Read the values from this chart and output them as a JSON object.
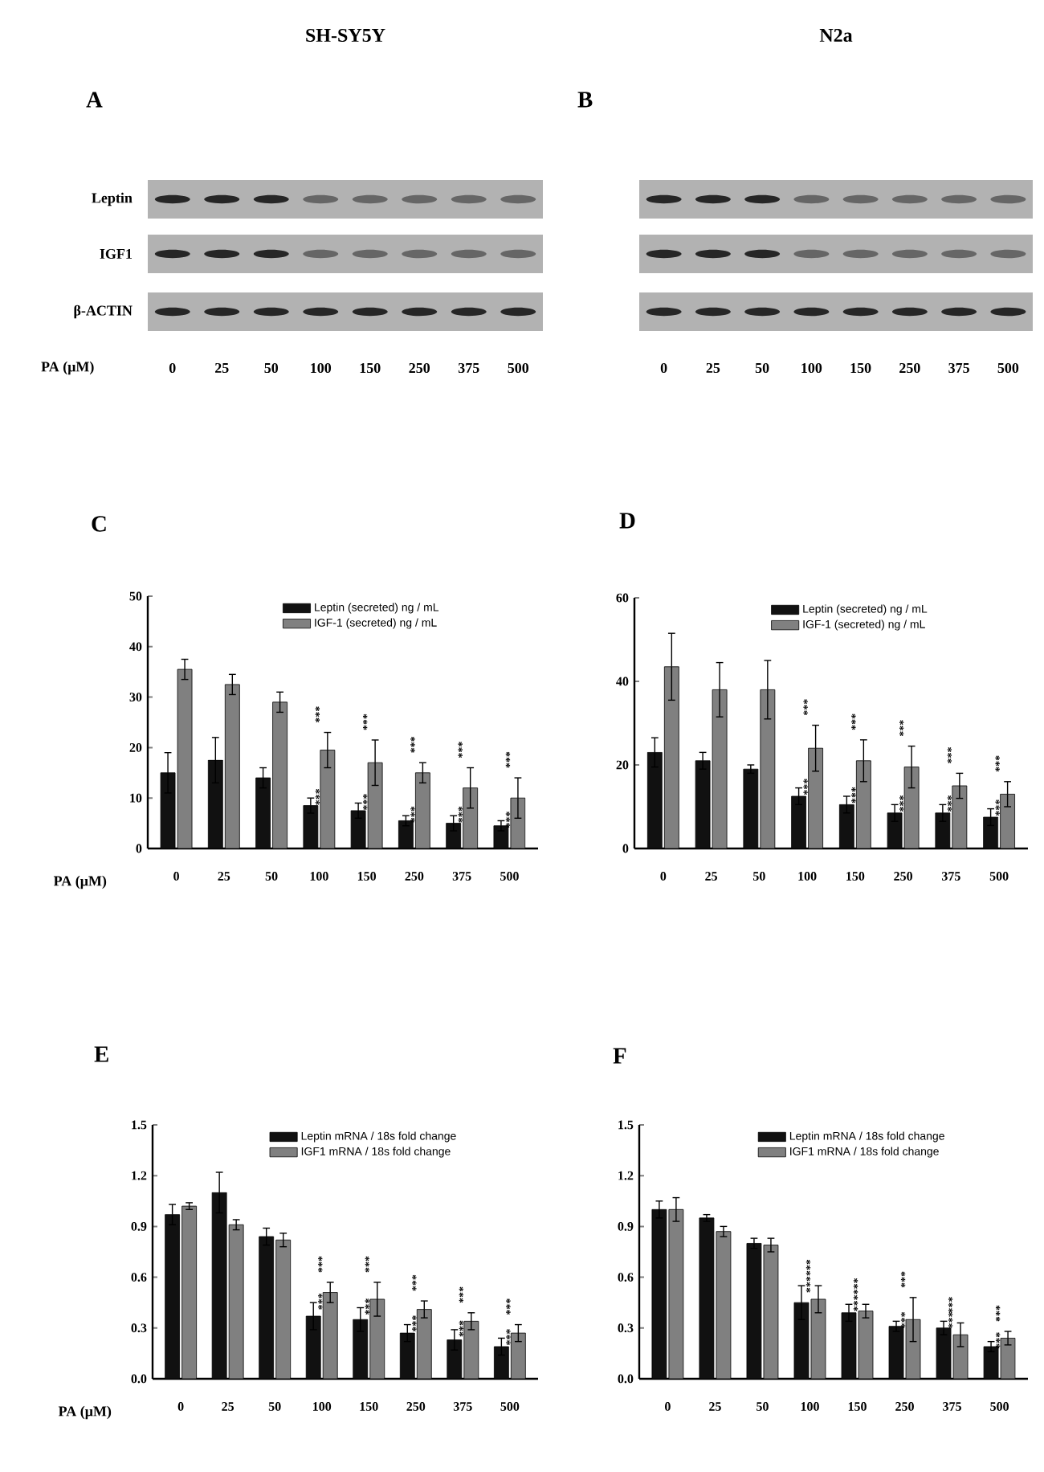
{
  "chart_data": [
    {
      "type": "other",
      "title": "A",
      "subtitle": "SH-SY5Y",
      "xlabel": "PA (μM)",
      "annotations": [
        "Leptin",
        "IGF1",
        "β-ACTIN"
      ],
      "categories": [
        "0",
        "25",
        "50",
        "100",
        "150",
        "250",
        "375",
        "500"
      ]
    },
    {
      "type": "other",
      "title": "B",
      "subtitle": "N2a",
      "categories": [
        "0",
        "25",
        "50",
        "100",
        "150",
        "250",
        "375",
        "500"
      ]
    },
    {
      "type": "bar",
      "title": "C",
      "xlabel": "PA (μM)",
      "categories": [
        "0",
        "25",
        "50",
        "100",
        "150",
        "250",
        "375",
        "500"
      ],
      "ylim": [
        0,
        50
      ],
      "yticks": [
        0,
        10,
        20,
        30,
        40,
        50
      ],
      "legend": "top",
      "series": [
        {
          "name": "Leptin (secreted) ng / mL",
          "color": "#111111",
          "values": [
            15,
            17.5,
            14,
            8.5,
            7.5,
            5.5,
            5,
            4.5
          ],
          "errors": [
            4,
            4.5,
            2,
            1.5,
            1.5,
            1,
            1.5,
            1
          ]
        },
        {
          "name": "IGF-1 (secreted) ng / mL",
          "color": "#808080",
          "values": [
            35.5,
            32.5,
            29,
            19.5,
            17,
            15,
            12,
            10
          ],
          "errors": [
            2,
            2,
            2,
            3.5,
            4.5,
            2,
            4,
            4
          ]
        }
      ],
      "annotations": [
        {
          "text": "***",
          "x": "100",
          "y": 10
        },
        {
          "text": "***",
          "x": "150",
          "y": 9
        },
        {
          "text": "***",
          "x": "250",
          "y": 6.5
        },
        {
          "text": "***",
          "x": "375",
          "y": 6.5
        },
        {
          "text": "***",
          "x": "500",
          "y": 5.5
        },
        {
          "text": "***",
          "x": "100",
          "y": 23
        },
        {
          "text": "***",
          "x": "150",
          "y": 21.5
        },
        {
          "text": "***",
          "x": "250",
          "y": 17
        },
        {
          "text": "***",
          "x": "375",
          "y": 16
        },
        {
          "text": "***",
          "x": "500",
          "y": 14
        }
      ]
    },
    {
      "type": "bar",
      "title": "D",
      "categories": [
        "0",
        "25",
        "50",
        "100",
        "150",
        "250",
        "375",
        "500"
      ],
      "ylim": [
        0,
        60
      ],
      "yticks": [
        0,
        20,
        40,
        60
      ],
      "legend": "top",
      "series": [
        {
          "name": "Leptin (secreted) ng / mL",
          "color": "#111111",
          "values": [
            23,
            21,
            19,
            12.5,
            10.5,
            8.5,
            8.5,
            7.5
          ],
          "errors": [
            3.5,
            2,
            1,
            2,
            2,
            2,
            2,
            2
          ]
        },
        {
          "name": "IGF-1 (secreted) ng / mL",
          "color": "#808080",
          "values": [
            43.5,
            38,
            38,
            24,
            21,
            19.5,
            15,
            13
          ],
          "errors": [
            8,
            6.5,
            7,
            5.5,
            5,
            5,
            3,
            3
          ]
        }
      ],
      "annotations": [
        {
          "text": "***",
          "x": "100",
          "y": 14.5
        },
        {
          "text": "***",
          "x": "150",
          "y": 12.5
        },
        {
          "text": "***",
          "x": "250",
          "y": 10.5
        },
        {
          "text": "***",
          "x": "375",
          "y": 10.5
        },
        {
          "text": "***",
          "x": "500",
          "y": 9.5
        },
        {
          "text": "***",
          "x": "100",
          "y": 29.5
        },
        {
          "text": "***",
          "x": "150",
          "y": 26
        },
        {
          "text": "***",
          "x": "250",
          "y": 24.5
        },
        {
          "text": "***",
          "x": "375",
          "y": 18
        },
        {
          "text": "***",
          "x": "500",
          "y": 16
        }
      ]
    },
    {
      "type": "bar",
      "title": "E",
      "xlabel": "PA (μM)",
      "categories": [
        "0",
        "25",
        "50",
        "100",
        "150",
        "250",
        "375",
        "500"
      ],
      "ylim": [
        0,
        1.5
      ],
      "yticks": [
        {
          "value": 0,
          "label": "0.0"
        },
        0.3,
        0.6,
        0.9,
        1.2,
        1.5
      ],
      "legend": "top",
      "series": [
        {
          "name": "Leptin mRNA / 18s  fold change",
          "color": "#111111",
          "values": [
            0.97,
            1.1,
            0.84,
            0.37,
            0.35,
            0.27,
            0.23,
            0.19
          ],
          "errors": [
            0.06,
            0.12,
            0.05,
            0.08,
            0.07,
            0.05,
            0.06,
            0.05
          ]
        },
        {
          "name": "IGF1 mRNA / 18s  fold change",
          "color": "#808080",
          "values": [
            1.02,
            0.91,
            0.82,
            0.51,
            0.47,
            0.41,
            0.34,
            0.27
          ],
          "errors": [
            0.02,
            0.03,
            0.04,
            0.06,
            0.1,
            0.05,
            0.05,
            0.05
          ]
        }
      ],
      "annotations": [
        {
          "text": "***",
          "x": "100",
          "y": 0.45
        },
        {
          "text": "***",
          "x": "150",
          "y": 0.42
        },
        {
          "text": "***",
          "x": "250",
          "y": 0.32
        },
        {
          "text": "***",
          "x": "375",
          "y": 0.29
        },
        {
          "text": "***",
          "x": "500",
          "y": 0.24
        },
        {
          "text": "***",
          "x": "100",
          "y": 0.57
        },
        {
          "text": "***",
          "x": "150",
          "y": 0.57
        },
        {
          "text": "***",
          "x": "250",
          "y": 0.46
        },
        {
          "text": "***",
          "x": "375",
          "y": 0.39
        },
        {
          "text": "***",
          "x": "500",
          "y": 0.32
        }
      ]
    },
    {
      "type": "bar",
      "title": "F",
      "categories": [
        "0",
        "25",
        "50",
        "100",
        "150",
        "250",
        "375",
        "500"
      ],
      "ylim": [
        0,
        1.5
      ],
      "yticks": [
        {
          "value": 0,
          "label": "0.0"
        },
        0.3,
        0.6,
        0.9,
        1.2,
        1.5
      ],
      "legend": "top",
      "series": [
        {
          "name": "Leptin mRNA / 18s  fold change",
          "color": "#111111",
          "values": [
            1.0,
            0.95,
            0.8,
            0.45,
            0.39,
            0.31,
            0.3,
            0.19
          ],
          "errors": [
            0.05,
            0.02,
            0.03,
            0.1,
            0.05,
            0.03,
            0.04,
            0.03
          ]
        },
        {
          "name": "IGF1 mRNA / 18s  fold change",
          "color": "#808080",
          "values": [
            1.0,
            0.87,
            0.79,
            0.47,
            0.4,
            0.35,
            0.26,
            0.24
          ],
          "errors": [
            0.07,
            0.03,
            0.04,
            0.08,
            0.04,
            0.13,
            0.07,
            0.04
          ]
        }
      ],
      "annotations": [
        {
          "text": "***",
          "x": "100",
          "y": 0.55
        },
        {
          "text": "***",
          "x": "150",
          "y": 0.44
        },
        {
          "text": "***",
          "x": "250",
          "y": 0.34
        },
        {
          "text": "***",
          "x": "375",
          "y": 0.34
        },
        {
          "text": "***",
          "x": "500",
          "y": 0.22
        },
        {
          "text": "***",
          "x": "100",
          "y": 0.55
        },
        {
          "text": "***",
          "x": "150",
          "y": 0.44
        },
        {
          "text": "***",
          "x": "250",
          "y": 0.48
        },
        {
          "text": "***",
          "x": "375",
          "y": 0.33
        },
        {
          "text": "***",
          "x": "500",
          "y": 0.28
        }
      ]
    }
  ]
}
